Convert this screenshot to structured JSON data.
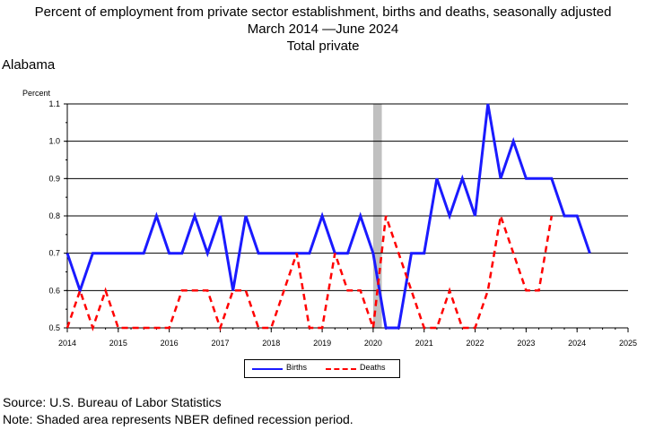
{
  "header": {
    "title": "Percent of employment from private sector establishment, births and deaths, seasonally adjusted",
    "date_range": "March 2014 —June 2024",
    "industry": "Total private",
    "region": "Alabama"
  },
  "footer": {
    "source": "Source: U.S. Bureau of Labor Statistics",
    "note": "Note: Shaded area represents NBER defined recession period."
  },
  "chart_data": {
    "type": "line",
    "ylabel": "Percent",
    "xlabel": "",
    "ylim": [
      0.5,
      1.1
    ],
    "xlim": [
      2014,
      2025
    ],
    "yticks": [
      "0.5",
      "0.6",
      "0.7",
      "0.8",
      "0.9",
      "1.0",
      "1.1"
    ],
    "xticks": [
      "2014",
      "2015",
      "2016",
      "2017",
      "2018",
      "2019",
      "2020",
      "2021",
      "2022",
      "2023",
      "2024",
      "2025"
    ],
    "grid": "horizontal",
    "legend": "bottom",
    "recession": {
      "start": 2020.0,
      "end": 2020.17
    },
    "series": [
      {
        "name": "Births",
        "color": "#1a1aff",
        "style": "solid",
        "x": [
          2014.0,
          2014.25,
          2014.5,
          2014.75,
          2015.0,
          2015.25,
          2015.5,
          2015.75,
          2016.0,
          2016.25,
          2016.5,
          2016.75,
          2017.0,
          2017.25,
          2017.5,
          2017.75,
          2018.0,
          2018.25,
          2018.5,
          2018.75,
          2019.0,
          2019.25,
          2019.5,
          2019.75,
          2020.0,
          2020.25,
          2020.5,
          2020.75,
          2021.0,
          2021.25,
          2021.5,
          2021.75,
          2022.0,
          2022.25,
          2022.5,
          2022.75,
          2023.0,
          2023.25,
          2023.5,
          2023.75,
          2024.0,
          2024.25
        ],
        "values": [
          0.7,
          0.6,
          0.7,
          0.7,
          0.7,
          0.7,
          0.7,
          0.8,
          0.7,
          0.7,
          0.8,
          0.7,
          0.8,
          0.6,
          0.8,
          0.7,
          0.7,
          0.7,
          0.7,
          0.7,
          0.8,
          0.7,
          0.7,
          0.8,
          0.7,
          0.5,
          0.5,
          0.7,
          0.7,
          0.9,
          0.8,
          0.9,
          0.8,
          1.1,
          0.9,
          1.0,
          0.9,
          0.9,
          0.9,
          0.8,
          0.8,
          0.7
        ]
      },
      {
        "name": "Deaths",
        "color": "#ff0000",
        "style": "dashed",
        "x": [
          2014.0,
          2014.25,
          2014.5,
          2014.75,
          2015.0,
          2015.25,
          2015.5,
          2015.75,
          2016.0,
          2016.25,
          2016.5,
          2016.75,
          2017.0,
          2017.25,
          2017.5,
          2017.75,
          2018.0,
          2018.25,
          2018.5,
          2018.75,
          2019.0,
          2019.25,
          2019.5,
          2019.75,
          2020.0,
          2020.25,
          2020.5,
          2020.75,
          2021.0,
          2021.25,
          2021.5,
          2021.75,
          2022.0,
          2022.25,
          2022.5,
          2022.75,
          2023.0,
          2023.25,
          2023.5
        ],
        "values": [
          0.5,
          0.6,
          0.5,
          0.6,
          0.5,
          0.5,
          0.5,
          0.5,
          0.5,
          0.6,
          0.6,
          0.6,
          0.5,
          0.6,
          0.6,
          0.5,
          0.5,
          0.6,
          0.7,
          0.5,
          0.5,
          0.7,
          0.6,
          0.6,
          0.5,
          0.8,
          0.7,
          0.6,
          0.5,
          0.5,
          0.6,
          0.5,
          0.5,
          0.6,
          0.8,
          0.7,
          0.6,
          0.6,
          0.8
        ]
      }
    ]
  }
}
